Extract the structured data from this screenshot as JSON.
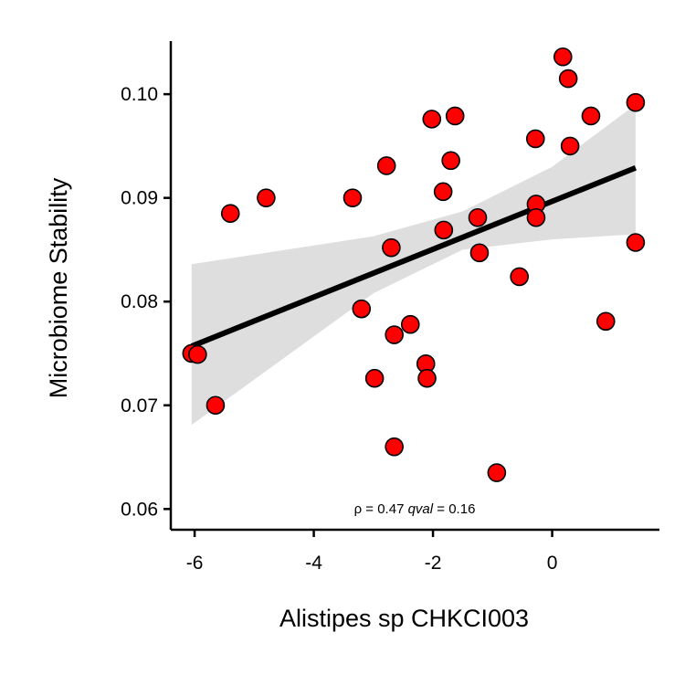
{
  "chart_data": {
    "type": "scatter",
    "xlabel": "Alistipes sp CHKCI003",
    "ylabel": "Microbiome Stability",
    "xlim": [
      -6.4,
      1.8
    ],
    "ylim": [
      0.058,
      0.106
    ],
    "x_ticks": [
      -6,
      -4,
      -2,
      0
    ],
    "x_tick_labels": [
      "-6",
      "-4",
      "-2",
      "0"
    ],
    "y_ticks": [
      0.06,
      0.07,
      0.08,
      0.09,
      0.1
    ],
    "y_tick_labels": [
      "0.06",
      "0.07",
      "0.08",
      "0.09",
      "0.10"
    ],
    "grid": false,
    "legend": "none",
    "point_color": "#ff0000",
    "point_edge_color": "#000000",
    "line_color": "#000000",
    "band_color": "#dedede",
    "annotation": {
      "rho_symbol": "ρ",
      "rho_text": " = 0.47 ",
      "qval_label": "qval",
      "qval_text": " = 0.16"
    },
    "points": [
      {
        "x": -6.05,
        "y": 0.075
      },
      {
        "x": -5.95,
        "y": 0.0749
      },
      {
        "x": -5.65,
        "y": 0.07
      },
      {
        "x": -5.4,
        "y": 0.0885
      },
      {
        "x": -4.8,
        "y": 0.09
      },
      {
        "x": -3.35,
        "y": 0.09
      },
      {
        "x": -3.2,
        "y": 0.0793
      },
      {
        "x": -2.98,
        "y": 0.0726
      },
      {
        "x": -2.78,
        "y": 0.0931
      },
      {
        "x": -2.7,
        "y": 0.0852
      },
      {
        "x": -2.65,
        "y": 0.0768
      },
      {
        "x": -2.65,
        "y": 0.066
      },
      {
        "x": -2.38,
        "y": 0.0778
      },
      {
        "x": -2.12,
        "y": 0.074
      },
      {
        "x": -2.1,
        "y": 0.0726
      },
      {
        "x": -2.02,
        "y": 0.0976
      },
      {
        "x": -1.83,
        "y": 0.0906
      },
      {
        "x": -1.82,
        "y": 0.0869
      },
      {
        "x": -1.7,
        "y": 0.0936
      },
      {
        "x": -1.63,
        "y": 0.0979
      },
      {
        "x": -1.25,
        "y": 0.0881
      },
      {
        "x": -1.22,
        "y": 0.0847
      },
      {
        "x": -0.93,
        "y": 0.0635
      },
      {
        "x": -0.55,
        "y": 0.0824
      },
      {
        "x": -0.28,
        "y": 0.0957
      },
      {
        "x": -0.27,
        "y": 0.0894
      },
      {
        "x": -0.27,
        "y": 0.0881
      },
      {
        "x": 0.18,
        "y": 0.1036
      },
      {
        "x": 0.27,
        "y": 0.1015
      },
      {
        "x": 0.3,
        "y": 0.095
      },
      {
        "x": 0.65,
        "y": 0.0979
      },
      {
        "x": 0.9,
        "y": 0.0781
      },
      {
        "x": 1.4,
        "y": 0.0992
      },
      {
        "x": 1.4,
        "y": 0.0857
      }
    ],
    "regression": {
      "x": [
        -6.05,
        1.4
      ],
      "y": [
        0.0757,
        0.0929
      ]
    },
    "confidence_band": {
      "x": [
        -6.05,
        -3,
        -1.5,
        0,
        1.4
      ],
      "lower": [
        0.0681,
        0.0808,
        0.085,
        0.086,
        0.0865
      ],
      "upper": [
        0.0836,
        0.0863,
        0.0887,
        0.093,
        0.099
      ]
    }
  }
}
